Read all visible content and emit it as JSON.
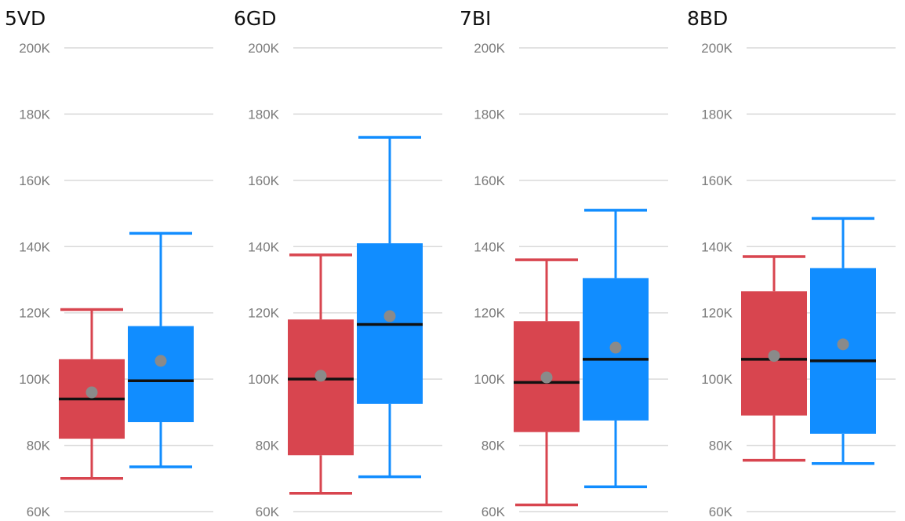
{
  "chart_data": {
    "type": "box",
    "colors": {
      "red": "#d8454f",
      "blue": "#118dff",
      "median": "#111111",
      "mean": "#8a8a8a",
      "grid": "#d9d9d9"
    },
    "y_ticks": [
      "200K",
      "180K",
      "160K",
      "140K",
      "120K",
      "100K",
      "80K",
      "60K"
    ],
    "y_tick_values": [
      200000,
      180000,
      160000,
      140000,
      120000,
      100000,
      80000,
      60000
    ],
    "ylim": [
      60000,
      200000
    ],
    "grid": true,
    "panels": [
      {
        "title": "5VD",
        "boxes": [
          {
            "color": "red",
            "min": 70000,
            "q1": 82000,
            "median": 94000,
            "mean": 96000,
            "q3": 106000,
            "max": 121000
          },
          {
            "color": "blue",
            "min": 73500,
            "q1": 87000,
            "median": 99500,
            "mean": 105500,
            "q3": 116000,
            "max": 144000
          }
        ]
      },
      {
        "title": "6GD",
        "boxes": [
          {
            "color": "red",
            "min": 65500,
            "q1": 77000,
            "median": 100000,
            "mean": 101000,
            "q3": 118000,
            "max": 137500
          },
          {
            "color": "blue",
            "min": 70500,
            "q1": 92500,
            "median": 116500,
            "mean": 119000,
            "q3": 141000,
            "max": 173000
          }
        ]
      },
      {
        "title": "7BI",
        "boxes": [
          {
            "color": "red",
            "min": 62000,
            "q1": 84000,
            "median": 99000,
            "mean": 100500,
            "q3": 117500,
            "max": 136000
          },
          {
            "color": "blue",
            "min": 67500,
            "q1": 87500,
            "median": 106000,
            "mean": 109500,
            "q3": 130500,
            "max": 151000
          }
        ]
      },
      {
        "title": "8BD",
        "boxes": [
          {
            "color": "red",
            "min": 75500,
            "q1": 89000,
            "median": 106000,
            "mean": 107000,
            "q3": 126500,
            "max": 137000
          },
          {
            "color": "blue",
            "min": 74500,
            "q1": 83500,
            "median": 105500,
            "mean": 110500,
            "q3": 133500,
            "max": 148500
          }
        ]
      }
    ]
  }
}
